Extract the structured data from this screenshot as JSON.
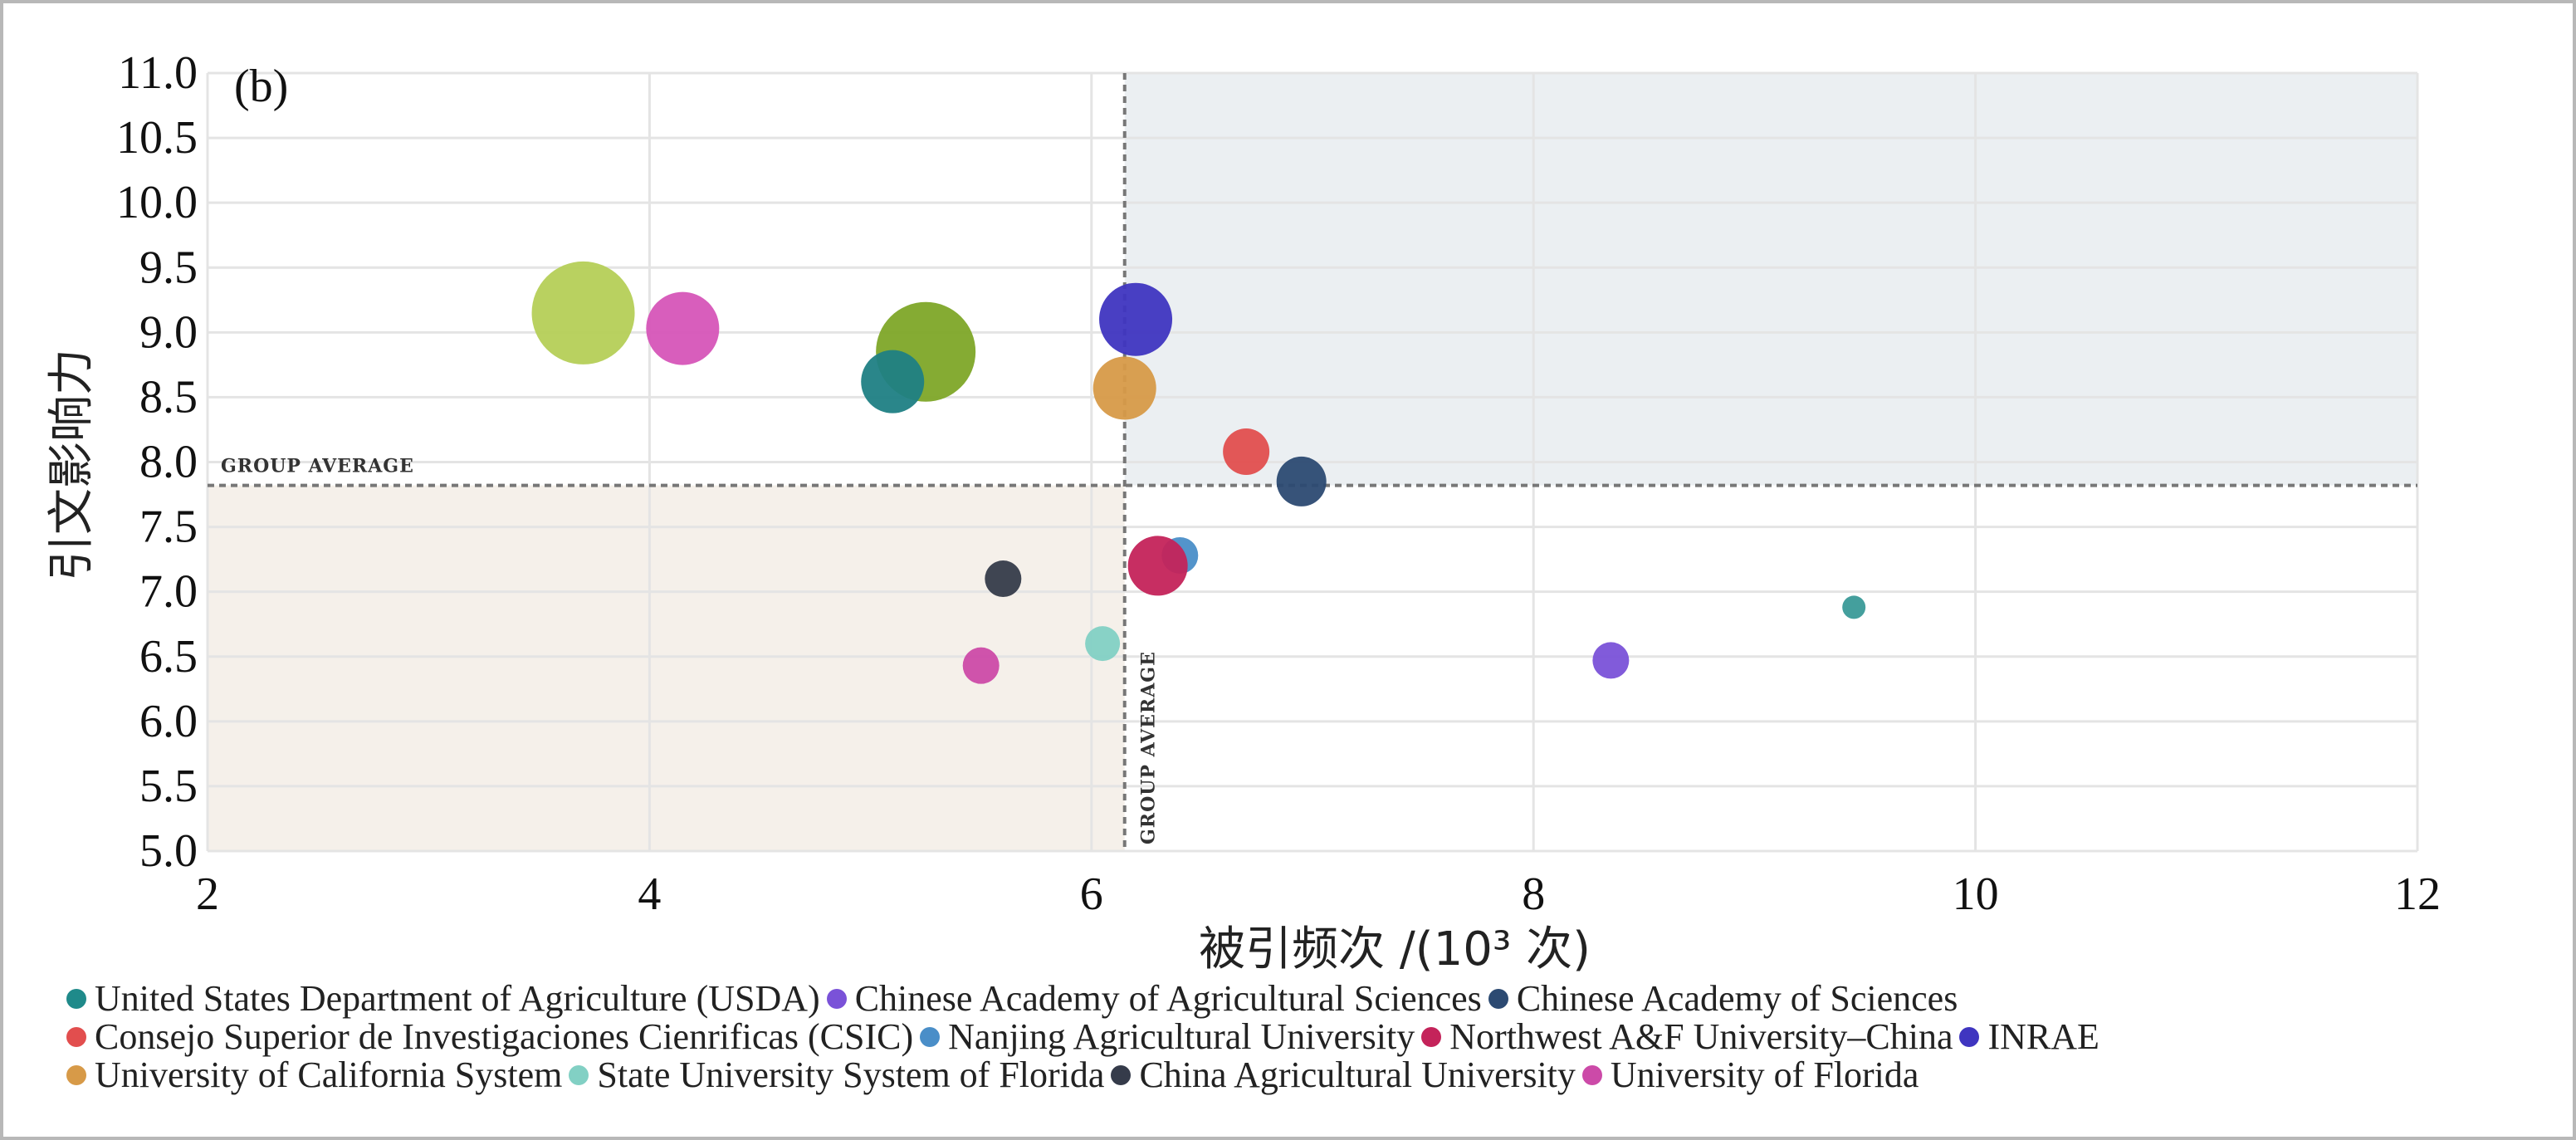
{
  "chart_data": {
    "type": "scatter",
    "panel_label": "(b)",
    "xlabel": "被引频次 /(10³ 次)",
    "ylabel": "引文影响力",
    "xlim": [
      2,
      12
    ],
    "ylim": [
      5.0,
      11.0
    ],
    "x_ticks": [
      "2",
      "4",
      "6",
      "8",
      "10",
      "12"
    ],
    "y_ticks": [
      "5.0",
      "5.5",
      "6.0",
      "6.5",
      "7.0",
      "7.5",
      "8.0",
      "8.5",
      "9.0",
      "9.5",
      "10.0",
      "10.5",
      "11.0"
    ],
    "group_average": {
      "x": 6.15,
      "y": 7.82,
      "label": "GROUP AVERAGE"
    },
    "grid": true,
    "legend_position": "bottom",
    "points": [
      {
        "x": 3.7,
        "y": 9.15,
        "size": 62,
        "color": "#b5cf57"
      },
      {
        "x": 4.15,
        "y": 9.03,
        "size": 44,
        "color": "#d655b8"
      },
      {
        "x": 5.25,
        "y": 8.85,
        "size": 60,
        "color": "#7ea628"
      },
      {
        "x": 5.1,
        "y": 8.62,
        "size": 38,
        "color": "#1f7f84"
      },
      {
        "x": 6.2,
        "y": 9.1,
        "size": 44,
        "color": "#3f35c0"
      },
      {
        "x": 6.15,
        "y": 8.57,
        "size": 38,
        "color": "#d79a48"
      },
      {
        "x": 6.7,
        "y": 8.08,
        "size": 28,
        "color": "#e24e4e"
      },
      {
        "x": 6.95,
        "y": 7.85,
        "size": 30,
        "color": "#2c4a72"
      },
      {
        "x": 5.6,
        "y": 7.1,
        "size": 22,
        "color": "#353b4a"
      },
      {
        "x": 6.4,
        "y": 7.28,
        "size": 22,
        "color": "#4a8ec8"
      },
      {
        "x": 6.3,
        "y": 7.2,
        "size": 36,
        "color": "#c4235a"
      },
      {
        "x": 6.05,
        "y": 6.6,
        "size": 21,
        "color": "#82d0c4"
      },
      {
        "x": 5.5,
        "y": 6.43,
        "size": 22,
        "color": "#cc4aa8"
      },
      {
        "x": 8.35,
        "y": 6.47,
        "size": 22,
        "color": "#7a52d8"
      },
      {
        "x": 9.45,
        "y": 6.88,
        "size": 14,
        "color": "#3a9a98"
      }
    ],
    "legend": [
      [
        {
          "label": "United States Department of Agriculture (USDA)",
          "color": "#1f8a8a"
        },
        {
          "label": "Chinese Academy of Agricultural Sciences",
          "color": "#7a52d8"
        },
        {
          "label": "Chinese Academy of Sciences",
          "color": "#2c4a72"
        }
      ],
      [
        {
          "label": "Consejo Superior de Investigaciones Cienrificas (CSIC)",
          "color": "#e24e4e"
        },
        {
          "label": "Nanjing Agricultural University",
          "color": "#4a8ec8"
        },
        {
          "label": "Northwest A&F University–China",
          "color": "#c4235a"
        },
        {
          "label": "INRAE",
          "color": "#3f35c0"
        }
      ],
      [
        {
          "label": "University of California System",
          "color": "#d79a48"
        },
        {
          "label": "State University System of Florida",
          "color": "#82d0c4"
        },
        {
          "label": "China Agricultural University",
          "color": "#353b4a"
        },
        {
          "label": "University of Florida",
          "color": "#cc4aa8"
        }
      ]
    ]
  }
}
